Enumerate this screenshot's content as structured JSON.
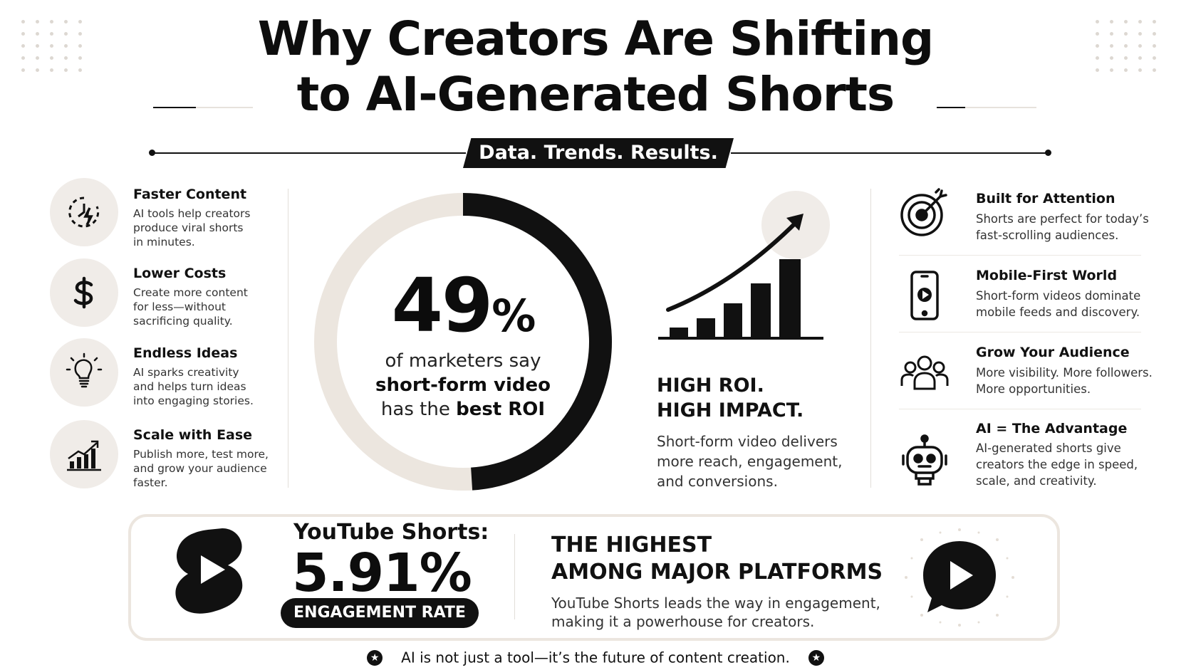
{
  "header": {
    "title_line1": "Why Creators Are Shifting",
    "title_line2": "to AI-Generated Shorts",
    "ribbon": "Data. Trends. Results."
  },
  "left_features": [
    {
      "icon": "clock-bolt-icon",
      "title": "Faster Content",
      "desc_lines": [
        "AI tools help creators",
        "produce viral shorts",
        "in minutes."
      ]
    },
    {
      "icon": "dollar-icon",
      "title": "Lower Costs",
      "desc_lines": [
        "Create more content",
        "for less—without",
        "sacrificing quality."
      ]
    },
    {
      "icon": "lightbulb-icon",
      "title": "Endless Ideas",
      "desc_lines": [
        "AI sparks creativity",
        "and helps turn ideas",
        "into engaging stories."
      ]
    },
    {
      "icon": "growth-chart-icon",
      "title": "Scale with Ease",
      "desc_lines": [
        "Publish more, test more,",
        "and grow your audience",
        "faster."
      ]
    }
  ],
  "center": {
    "big_number": "49",
    "percent": "%",
    "donut_fraction": 0.49,
    "line1": "of marketers say",
    "line2": "short-form video",
    "line3_pre": "has the ",
    "line3_bold": "best ROI",
    "colors": {
      "dark": "#111111",
      "light": "#ece6df"
    }
  },
  "roi": {
    "title_line1": "HIGH ROI.",
    "title_line2": "HIGH IMPACT.",
    "desc_lines": [
      "Short-form video delivers",
      "more reach, engagement,",
      "and conversions."
    ]
  },
  "right_features": [
    {
      "icon": "target-icon",
      "title": "Built for Attention",
      "desc_lines": [
        "Shorts are perfect for today’s",
        "fast-scrolling audiences."
      ]
    },
    {
      "icon": "smartphone-play-icon",
      "title": "Mobile-First World",
      "desc_lines": [
        "Short-form videos dominate",
        "mobile feeds and discovery."
      ]
    },
    {
      "icon": "people-group-icon",
      "title": "Grow Your Audience",
      "desc_lines": [
        "More visibility. More followers.",
        "More opportunities."
      ]
    },
    {
      "icon": "robot-icon",
      "title": "AI = The Advantage",
      "desc_lines": [
        "AI-generated shorts give",
        "creators the edge in speed,",
        "scale, and creativity."
      ]
    }
  ],
  "bottom": {
    "platform_label": "YouTube Shorts:",
    "rate": "5.91%",
    "pill": "ENGAGEMENT RATE",
    "highlight_line1": "THE HIGHEST",
    "highlight_line2": "AMONG MAJOR PLATFORMS",
    "desc_lines": [
      "YouTube Shorts leads the way in engagement,",
      "making it a powerhouse for creators."
    ]
  },
  "footer": {
    "text": "AI is not just a tool—it’s the future of content creation."
  }
}
